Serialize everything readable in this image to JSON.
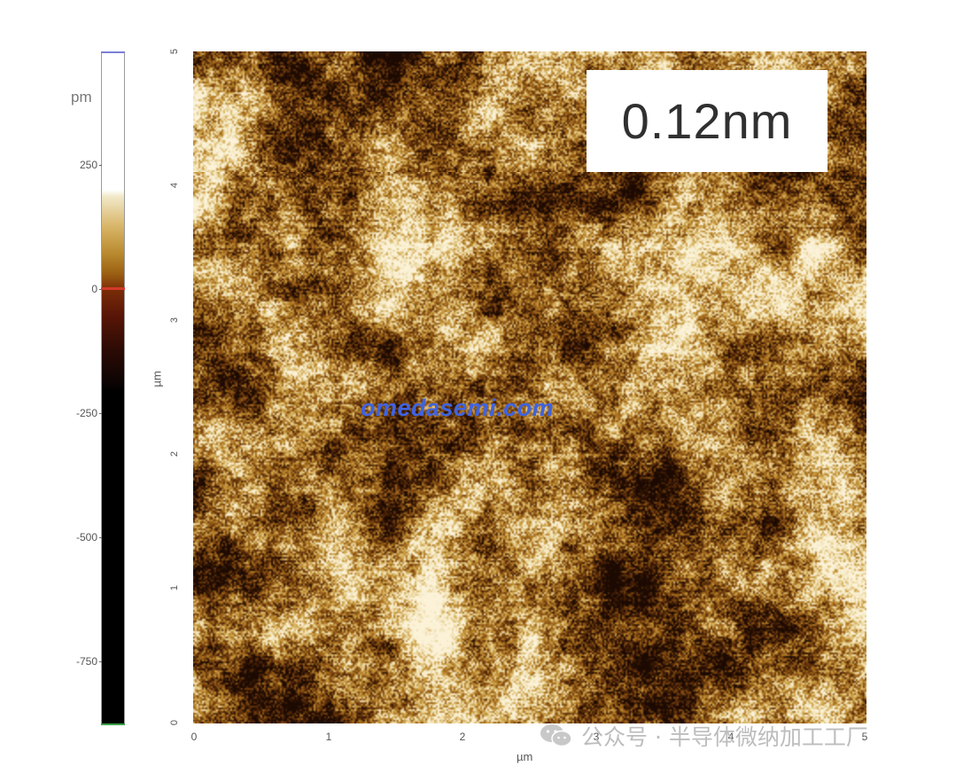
{
  "colorbar": {
    "unit": "pm",
    "ticks": [
      {
        "label": "250",
        "value": 250
      },
      {
        "label": "0",
        "value": 0
      },
      {
        "label": "-250",
        "value": -250
      },
      {
        "label": "-500",
        "value": -500
      },
      {
        "label": "-750",
        "value": -750
      }
    ],
    "colors": {
      "white": "#ffffff",
      "gold": "#b8892e",
      "brown": "#7a2d08",
      "black": "#000000",
      "zero_marker": "#d23a2a",
      "top_marker": "#7b7fd6",
      "bottom_marker": "#3aa24a"
    }
  },
  "image": {
    "x_axis": {
      "label": "µm",
      "ticks": [
        "0",
        "1",
        "2",
        "3",
        "4",
        "5"
      ]
    },
    "y_axis": {
      "label": "µm",
      "ticks": [
        "0",
        "1",
        "2",
        "3",
        "4",
        "5"
      ]
    },
    "roughness_value": "0.12nm",
    "palette": [
      "#1c0a02",
      "#4a2206",
      "#7a4410",
      "#a8701e",
      "#cfa44a",
      "#ecd9a2",
      "#fbf2d8"
    ]
  },
  "watermark": {
    "text": "omedasemi.com",
    "color": "#3f63e0"
  },
  "wechat": {
    "icon": "wechat-icon",
    "text": "公众号 · 半导体微纳加工工厂"
  }
}
